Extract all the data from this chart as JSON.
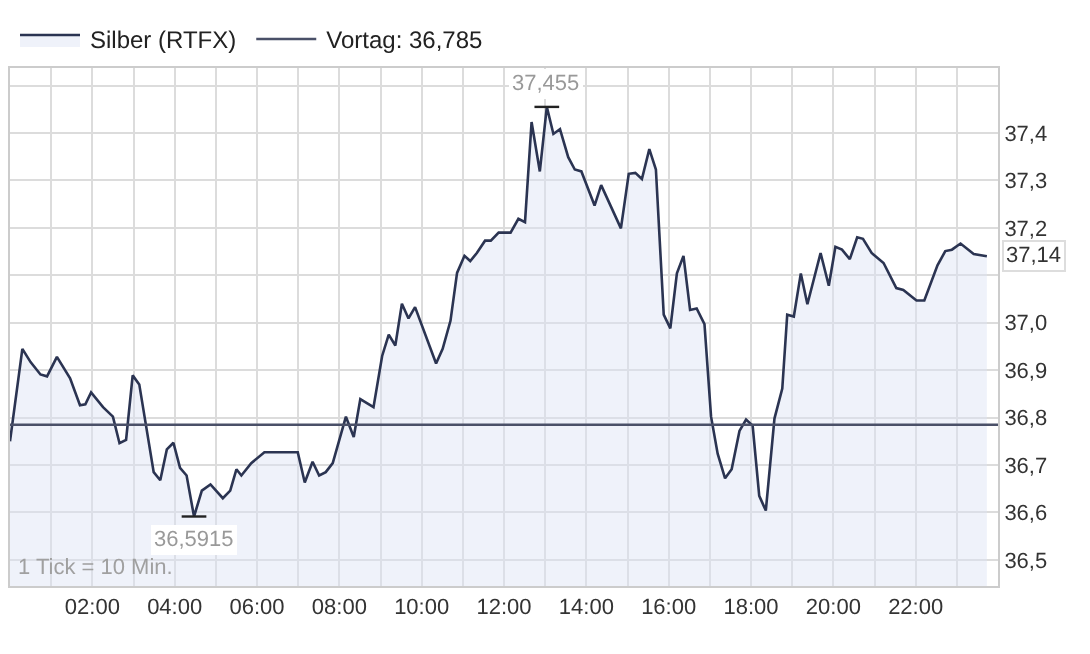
{
  "chart_data": {
    "type": "area",
    "x": [
      0,
      0.3,
      0.5,
      0.74,
      0.9,
      1.14,
      1.46,
      1.7,
      1.83,
      1.97,
      2.26,
      2.5,
      2.66,
      2.82,
      2.98,
      3.14,
      3.49,
      3.65,
      3.81,
      3.97,
      4.13,
      4.29,
      4.47,
      4.66,
      4.87,
      5.17,
      5.35,
      5.5,
      5.62,
      5.86,
      6.18,
      6.99,
      7.16,
      7.35,
      7.51,
      7.67,
      7.84,
      8.16,
      8.35,
      8.51,
      8.83,
      9.04,
      9.2,
      9.36,
      9.52,
      9.68,
      9.84,
      10.35,
      10.51,
      10.7,
      10.86,
      11.04,
      11.18,
      11.34,
      11.54,
      11.68,
      11.87,
      12.16,
      12.35,
      12.51,
      12.67,
      12.87,
      13.04,
      13.2,
      13.36,
      13.56,
      13.72,
      13.88,
      14.2,
      14.36,
      14.84,
      15.03,
      15.19,
      15.35,
      15.53,
      15.69,
      15.88,
      16.04,
      16.2,
      16.36,
      16.52,
      16.68,
      16.87,
      17.03,
      17.19,
      17.37,
      17.53,
      17.72,
      17.88,
      18.04,
      18.2,
      18.36,
      18.57,
      18.76,
      18.88,
      19.04,
      19.21,
      19.37,
      19.69,
      19.89,
      20.05,
      20.21,
      20.4,
      20.58,
      20.72,
      20.93,
      21.22,
      21.53,
      21.7,
      22.02,
      22.21,
      22.53,
      22.72,
      22.88,
      23.09,
      23.41,
      23.73
    ],
    "series": [
      {
        "name": "Silber (RTFX)",
        "color": "#2b3452",
        "values": [
          36.75,
          36.945,
          36.917,
          36.891,
          36.887,
          36.928,
          36.883,
          36.826,
          36.828,
          36.853,
          36.822,
          36.802,
          36.746,
          36.753,
          36.889,
          36.87,
          36.685,
          36.668,
          36.733,
          36.747,
          36.694,
          36.678,
          36.5915,
          36.646,
          36.659,
          36.63,
          36.646,
          36.691,
          36.678,
          36.704,
          36.727,
          36.727,
          36.663,
          36.707,
          36.678,
          36.685,
          36.704,
          36.802,
          36.759,
          36.839,
          36.822,
          36.93,
          36.975,
          36.952,
          37.04,
          37.009,
          37.033,
          36.914,
          36.945,
          37.004,
          37.105,
          37.141,
          37.13,
          37.147,
          37.173,
          37.173,
          37.19,
          37.19,
          37.219,
          37.212,
          37.423,
          37.319,
          37.455,
          37.398,
          37.408,
          37.349,
          37.323,
          37.319,
          37.247,
          37.29,
          37.199,
          37.314,
          37.316,
          37.303,
          37.366,
          37.323,
          37.017,
          36.988,
          37.104,
          37.141,
          37.027,
          37.03,
          36.997,
          36.802,
          36.724,
          36.672,
          36.691,
          36.772,
          36.796,
          36.783,
          36.635,
          36.604,
          36.798,
          36.861,
          37.017,
          37.013,
          37.104,
          37.039,
          37.147,
          37.078,
          37.16,
          37.154,
          37.134,
          37.18,
          37.177,
          37.147,
          37.126,
          37.073,
          37.069,
          37.047,
          37.047,
          37.121,
          37.151,
          37.154,
          37.167,
          37.145,
          37.14
        ]
      }
    ],
    "ref_lines": [
      {
        "axis": "y",
        "value": 36.785,
        "label": "Vortag: 36,785",
        "color": "#4a5068"
      }
    ],
    "annotations": [
      {
        "text": "37,455",
        "x": 13.04,
        "y": 37.455
      },
      {
        "text": "36,5915",
        "x": 4.47,
        "y": 36.5915
      },
      {
        "text": "37,14",
        "x": 23.73,
        "y": 37.14
      },
      "1 Tick = 10 Min."
    ],
    "xlim": [
      0,
      24
    ],
    "xticks": [
      {
        "value": 1,
        "label": null
      },
      {
        "value": 2,
        "label": "02:00"
      },
      {
        "value": 3,
        "label": null
      },
      {
        "value": 4,
        "label": "04:00"
      },
      {
        "value": 5,
        "label": null
      },
      {
        "value": 6,
        "label": "06:00"
      },
      {
        "value": 7,
        "label": null
      },
      {
        "value": 8,
        "label": "08:00"
      },
      {
        "value": 9,
        "label": null
      },
      {
        "value": 10,
        "label": "10:00"
      },
      {
        "value": 11,
        "label": null
      },
      {
        "value": 12,
        "label": "12:00"
      },
      {
        "value": 13,
        "label": null
      },
      {
        "value": 14,
        "label": "14:00"
      },
      {
        "value": 15,
        "label": null
      },
      {
        "value": 16,
        "label": "16:00"
      },
      {
        "value": 17,
        "label": null
      },
      {
        "value": 18,
        "label": "18:00"
      },
      {
        "value": 19,
        "label": null
      },
      {
        "value": 20,
        "label": "20:00"
      },
      {
        "value": 21,
        "label": null
      },
      {
        "value": 22,
        "label": "22:00"
      },
      {
        "value": 23,
        "label": null
      }
    ],
    "ylim": [
      36.445,
      37.537
    ],
    "yticks": [
      {
        "value": 36.5,
        "label": "36,5"
      },
      {
        "value": 36.6,
        "label": "36,6"
      },
      {
        "value": 36.7,
        "label": "36,7"
      },
      {
        "value": 36.8,
        "label": "36,8"
      },
      {
        "value": 36.9,
        "label": "36,9"
      },
      {
        "value": 37.0,
        "label": "37,0"
      },
      {
        "value": 37.1,
        "label": null
      },
      {
        "value": 37.2,
        "label": "37,2"
      },
      {
        "value": 37.3,
        "label": "37,3"
      },
      {
        "value": 37.4,
        "label": "37,4"
      },
      {
        "value": 37.5,
        "label": null
      }
    ],
    "grid": true,
    "legend": "top left",
    "marker": "none",
    "line_style": "solid"
  }
}
